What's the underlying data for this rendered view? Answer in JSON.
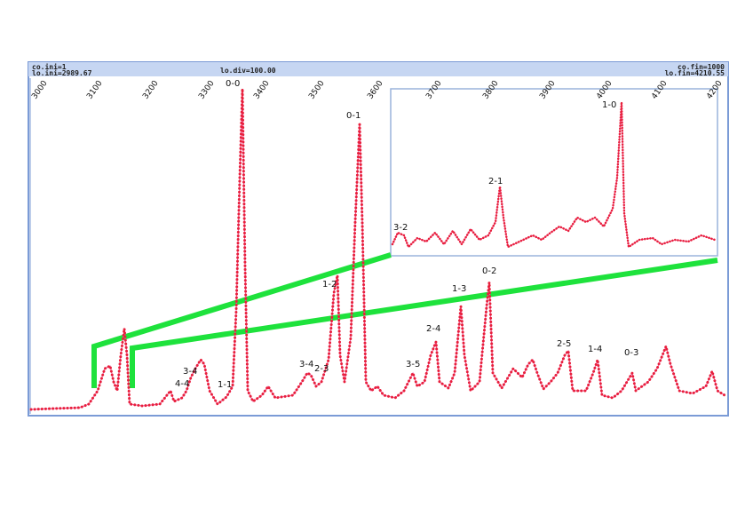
{
  "header": {
    "left_top": "co.ini=1",
    "left_bottom": "lo.ini=2989.67",
    "center": "lo.div=100.00",
    "right_top": "co.fin=1000",
    "right_bottom": "lo.fin=4210.55"
  },
  "axis": {
    "main_ticks": [
      "3000",
      "3100",
      "3200",
      "3300",
      "3400",
      "3500",
      "3600"
    ],
    "inset_ticks": [
      "3700",
      "3800",
      "3900",
      "4000",
      "4100",
      "4200"
    ]
  },
  "peaks": [
    "0-0",
    "0-1",
    "1-2",
    "2-3",
    "3-4",
    "1-1",
    "4-4",
    "3-4",
    "3-5",
    "2-4",
    "1-3",
    "0-2",
    "2-5",
    "1-4",
    "0-3"
  ],
  "inset_peaks": [
    "2-1",
    "1-0",
    "3-2"
  ]
}
